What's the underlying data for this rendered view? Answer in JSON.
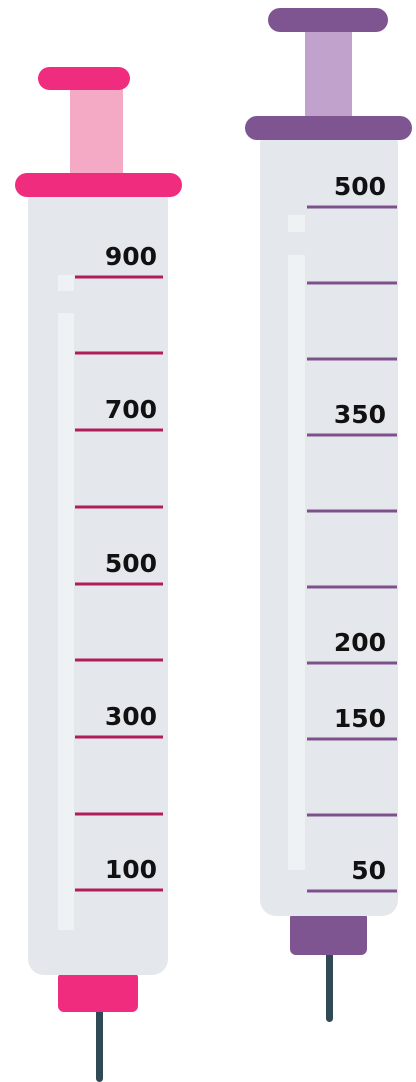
{
  "syringes": [
    {
      "labels": [
        "900",
        "700",
        "500",
        "300",
        "100"
      ]
    },
    {
      "labels": [
        "500",
        "350",
        "200",
        "150",
        "50"
      ]
    }
  ]
}
